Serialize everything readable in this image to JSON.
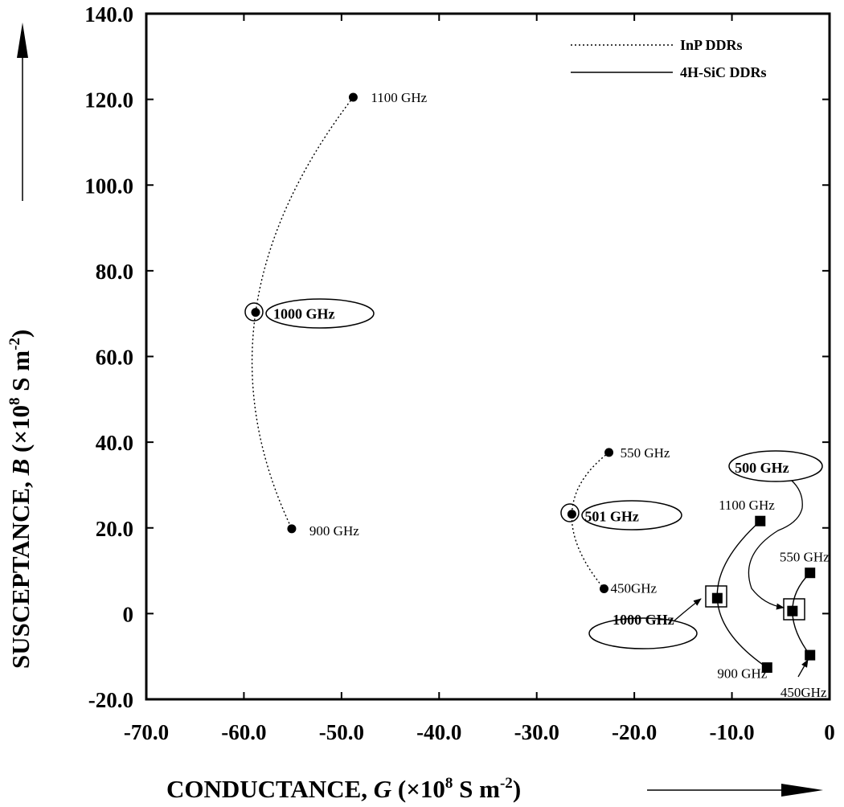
{
  "chart_data": {
    "type": "line",
    "xlabel": "CONDUCTANCE, G (×10⁸ S m⁻²)",
    "ylabel": "SUSCEPTANCE, B (×10⁸ S m⁻²)",
    "xlim": [
      -70,
      0
    ],
    "ylim": [
      -20,
      140
    ],
    "x_ticks": [
      -70,
      -60,
      -50,
      -40,
      -30,
      -20,
      -10,
      0
    ],
    "x_tick_labels": [
      "-70.0",
      "-60.0",
      "-50.0",
      "-40.0",
      "-30.0",
      "-20.0",
      "-10.0",
      "0"
    ],
    "y_ticks": [
      -20,
      0,
      20,
      40,
      60,
      80,
      100,
      120,
      140
    ],
    "y_tick_labels": [
      "-20.0",
      "0",
      "20.0",
      "40.0",
      "60.0",
      "80.0",
      "100.0",
      "120.0",
      "140.0"
    ],
    "grid": false,
    "legend_position": "top-right",
    "series": [
      {
        "name": "InP DDRs",
        "style": "dotted",
        "marker": "circle",
        "points": [
          {
            "x": -48.8,
            "y": 120.5,
            "label": "1100 GHz"
          },
          {
            "x": -58.8,
            "y": 70.3,
            "label": "1000 GHz"
          },
          {
            "x": -55.1,
            "y": 19.8,
            "label": "900 GHz"
          }
        ]
      },
      {
        "name": "InP DDRs",
        "style": "dotted",
        "marker": "circle",
        "points": [
          {
            "x": -22.6,
            "y": 37.6,
            "label": "550 GHz"
          },
          {
            "x": -26.4,
            "y": 23.2,
            "label": "501 GHz"
          },
          {
            "x": -23.1,
            "y": 5.8,
            "label": "450GHz"
          }
        ]
      },
      {
        "name": "4H-SiC DDRs",
        "style": "solid",
        "marker": "square",
        "points": [
          {
            "x": -7.1,
            "y": 21.6,
            "label": "1100 GHz"
          },
          {
            "x": -11.5,
            "y": 3.6,
            "label": "1000 GHz"
          },
          {
            "x": -6.4,
            "y": -12.6,
            "label": "900 GHz"
          }
        ]
      },
      {
        "name": "4H-SiC DDRs",
        "style": "solid",
        "marker": "square",
        "points": [
          {
            "x": -2.0,
            "y": 9.5,
            "label": "550 GHz"
          },
          {
            "x": -3.8,
            "y": 0.6,
            "label": "500 GHz"
          },
          {
            "x": -2.0,
            "y": -9.7,
            "label": "450GHz"
          }
        ]
      }
    ],
    "legend": [
      {
        "label": "InP DDRs",
        "style": "dotted"
      },
      {
        "label": "4H-SiC DDRs",
        "style": "solid"
      }
    ]
  }
}
